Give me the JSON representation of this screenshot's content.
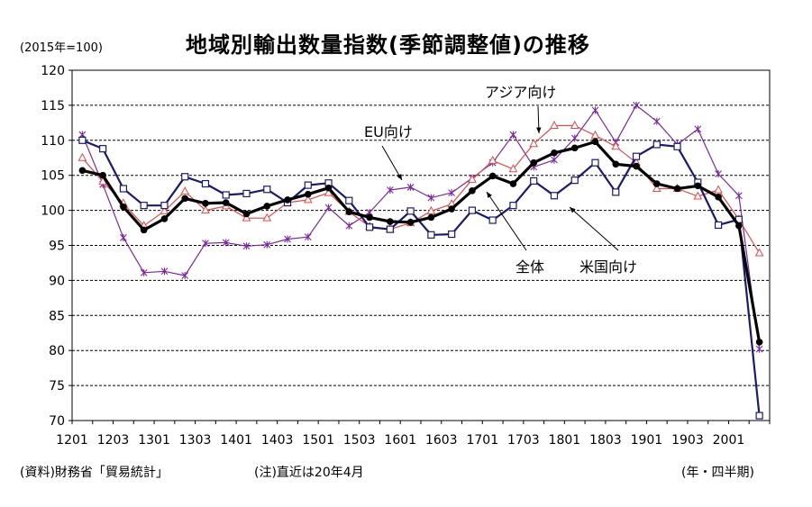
{
  "unit_label": "(2015年=100)",
  "source_label": "(資料)財務省「貿易統計」",
  "note_label": "(注)直近は20年4月",
  "period_label": "(年・四半期)",
  "chart_data": {
    "type": "line",
    "title": "地域別輸出数量指数(季節調整値)の推移",
    "ylim": [
      70,
      120
    ],
    "yticks": [
      70,
      75,
      80,
      85,
      90,
      95,
      100,
      105,
      110,
      115,
      120
    ],
    "grid": "dashed-horizontal",
    "xtick_labels": [
      "1201",
      "1203",
      "1301",
      "1303",
      "1401",
      "1403",
      "1501",
      "1503",
      "1601",
      "1603",
      "1701",
      "1703",
      "1801",
      "1803",
      "1901",
      "1903",
      "2001"
    ],
    "x": [
      "1201",
      "1202",
      "1203",
      "1204",
      "1301",
      "1302",
      "1303",
      "1304",
      "1401",
      "1402",
      "1403",
      "1404",
      "1501",
      "1502",
      "1503",
      "1504",
      "1601",
      "1602",
      "1603",
      "1604",
      "1701",
      "1702",
      "1703",
      "1704",
      "1801",
      "1802",
      "1803",
      "1804",
      "1901",
      "1902",
      "1903",
      "1904",
      "2001",
      "20年4月"
    ],
    "series": [
      {
        "name": "全体",
        "color": "#000000",
        "marker": "filled-circle",
        "values": [
          105.7,
          105.0,
          100.5,
          97.2,
          98.8,
          101.7,
          101.0,
          101.1,
          99.5,
          100.6,
          101.5,
          102.3,
          103.2,
          99.8,
          99.0,
          98.4,
          98.3,
          99.0,
          100.2,
          102.8,
          104.9,
          103.8,
          106.8,
          108.2,
          108.9,
          109.8,
          106.6,
          106.3,
          103.8,
          103.1,
          103.5,
          101.9,
          97.8,
          81.2
        ]
      },
      {
        "name": "米国向け",
        "color": "#1a1a6e",
        "marker": "open-square",
        "values": [
          110.0,
          108.8,
          103.1,
          100.7,
          100.7,
          104.8,
          103.8,
          102.2,
          102.4,
          103.0,
          101.1,
          103.6,
          103.9,
          101.4,
          97.6,
          97.3,
          99.9,
          96.5,
          96.6,
          100.0,
          98.6,
          100.7,
          104.2,
          102.1,
          104.3,
          106.8,
          102.6,
          107.7,
          109.4,
          109.1,
          104.0,
          97.9,
          98.7,
          70.7
        ]
      },
      {
        "name": "アジア向け",
        "color": "#e04a4a",
        "marker": "open-triangle",
        "values": [
          107.5,
          104.1,
          101.0,
          97.8,
          99.9,
          102.7,
          100.0,
          100.6,
          98.9,
          98.9,
          101.1,
          101.5,
          102.5,
          99.8,
          97.7,
          97.3,
          98.2,
          99.9,
          100.9,
          104.4,
          107.1,
          105.9,
          109.5,
          112.1,
          112.1,
          110.7,
          109.1,
          106.8,
          103.1,
          103.1,
          102.0,
          102.9,
          98.7,
          93.9
        ]
      },
      {
        "name": "EU向け",
        "color": "#7a2a9a",
        "marker": "x",
        "values": [
          110.8,
          103.7,
          96.1,
          91.1,
          91.3,
          90.7,
          95.3,
          95.4,
          94.9,
          95.1,
          95.9,
          96.2,
          100.4,
          97.8,
          99.7,
          102.9,
          103.3,
          101.8,
          102.5,
          104.6,
          106.8,
          110.8,
          106.2,
          107.2,
          110.3,
          114.3,
          109.7,
          115.0,
          112.7,
          109.4,
          111.6,
          105.2,
          102.1,
          80.2
        ]
      }
    ],
    "annotations": [
      "アジア向け",
      "EU向け",
      "全体",
      "米国向け"
    ]
  }
}
